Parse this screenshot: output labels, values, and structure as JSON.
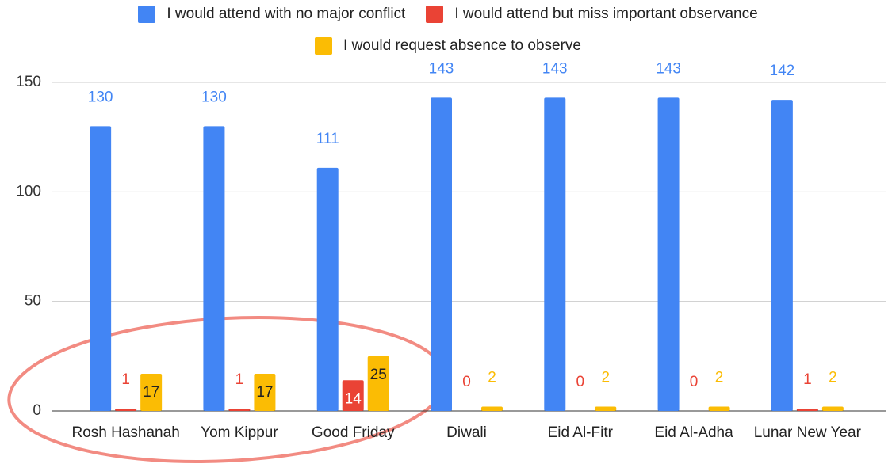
{
  "chart_data": {
    "type": "bar",
    "categories": [
      "Rosh Hashanah",
      "Yom Kippur",
      "Good Friday",
      "Diwali",
      "Eid Al-Fitr",
      "Eid Al-Adha",
      "Lunar New Year"
    ],
    "series": [
      {
        "name": "I would attend with no major conflict",
        "color": "#4285f4",
        "values": [
          130,
          130,
          111,
          143,
          143,
          143,
          142
        ]
      },
      {
        "name": "I would attend but miss important observance",
        "color": "#ea4335",
        "values": [
          1,
          1,
          14,
          0,
          0,
          0,
          1
        ]
      },
      {
        "name": "I would request absence to observe",
        "color": "#fbbc04",
        "values": [
          17,
          17,
          25,
          2,
          2,
          2,
          2
        ]
      }
    ],
    "ylim": [
      0,
      150
    ],
    "yticks": [
      0,
      50,
      100,
      150
    ],
    "grid": true,
    "legend": "top"
  }
}
